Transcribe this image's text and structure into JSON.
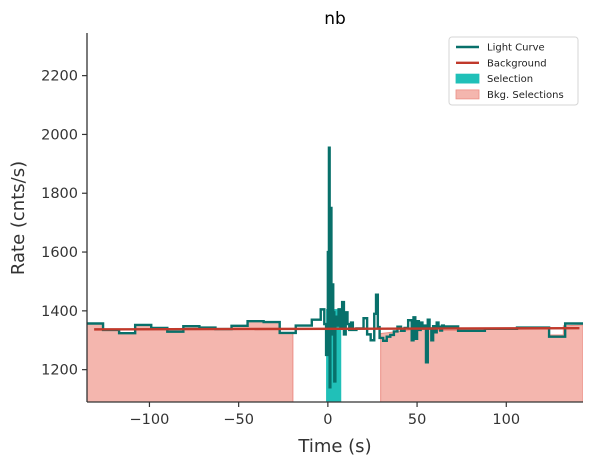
{
  "chart_data": {
    "type": "line",
    "title": "nb",
    "xlabel": "Time (s)",
    "ylabel": "Rate (cnts/s)",
    "xlim": [
      -135,
      143
    ],
    "ylim": [
      1090,
      2345
    ],
    "xticks": [
      -100,
      -50,
      0,
      50,
      100
    ],
    "xtick_labels": [
      "−100",
      "−50",
      "0",
      "50",
      "100"
    ],
    "yticks": [
      1200,
      1400,
      1600,
      1800,
      2000,
      2200
    ],
    "ytick_labels": [
      "1200",
      "1400",
      "1600",
      "1800",
      "2000",
      "2200"
    ],
    "grid": false,
    "legend_position": "top-right",
    "legend": [
      {
        "label": "Light Curve",
        "kind": "line",
        "color": "#08706a"
      },
      {
        "label": "Background",
        "kind": "line",
        "color": "#c0392b"
      },
      {
        "label": "Selection",
        "kind": "patch",
        "color": "#20c0b8"
      },
      {
        "label": "Bkg. Selections",
        "kind": "patch",
        "color": "#f4b6ae"
      }
    ],
    "colors": {
      "light_curve": "#08706a",
      "background": "#c0392b",
      "selection": "#20c0b8",
      "bkg_selection_fill": "#f4b6ae",
      "bkg_selection_edge": "#ec8f86"
    },
    "background_line": {
      "x": [
        -131,
        141
      ],
      "y": [
        1337,
        1341
      ]
    },
    "bkg_selections": [
      {
        "x": [
          -135,
          -19.6
        ],
        "y": [
          [
            -135,
            1357
          ],
          [
            -126,
            1357
          ],
          [
            -126,
            1335
          ],
          [
            -117,
            1335
          ],
          [
            -117,
            1324
          ],
          [
            -108,
            1324
          ],
          [
            -108,
            1352
          ],
          [
            -99,
            1352
          ],
          [
            -99,
            1342
          ],
          [
            -90,
            1342
          ],
          [
            -90,
            1329
          ],
          [
            -81,
            1329
          ],
          [
            -81,
            1348
          ],
          [
            -72,
            1348
          ],
          [
            -72,
            1343
          ],
          [
            -63,
            1343
          ],
          [
            -63,
            1338
          ],
          [
            -54,
            1338
          ],
          [
            -54,
            1349
          ],
          [
            -45,
            1349
          ],
          [
            -45,
            1365
          ],
          [
            -36,
            1365
          ],
          [
            -36,
            1362
          ],
          [
            -27,
            1362
          ],
          [
            -27,
            1325
          ],
          [
            -19.6,
            1325
          ]
        ]
      },
      {
        "x": [
          29.6,
          143
        ],
        "y": [
          [
            29.6,
            1323
          ],
          [
            40,
            1330
          ],
          [
            48,
            1336
          ],
          [
            55,
            1342
          ],
          [
            62,
            1333
          ],
          [
            70,
            1333
          ],
          [
            88,
            1333
          ],
          [
            88,
            1339
          ],
          [
            106,
            1339
          ],
          [
            106,
            1343
          ],
          [
            124,
            1343
          ],
          [
            124,
            1318
          ],
          [
            132,
            1318
          ],
          [
            132,
            1349
          ],
          [
            143,
            1352
          ]
        ]
      }
    ],
    "selection": {
      "x_range": [
        -1,
        7.5
      ]
    },
    "light_curve": {
      "x": [
        -135,
        -126,
        -126,
        -117,
        -117,
        -108,
        -108,
        -99,
        -99,
        -90,
        -90,
        -81,
        -81,
        -72,
        -72,
        -63,
        -63,
        -54,
        -54,
        -45,
        -45,
        -36,
        -36,
        -27,
        -27,
        -18,
        -18,
        -9,
        -9,
        -4,
        -4,
        -2,
        -2,
        -1,
        -1,
        0,
        0,
        0.3,
        0.3,
        0.6,
        0.6,
        1,
        1,
        1.4,
        1.4,
        2,
        2,
        2.5,
        2.5,
        3,
        3,
        3.6,
        3.6,
        4.2,
        4.2,
        5,
        5,
        6,
        6,
        7,
        7,
        8,
        8,
        9,
        9,
        10,
        10,
        11,
        11,
        12,
        12,
        13,
        13,
        14,
        14,
        16,
        16,
        18,
        18,
        20,
        20,
        22,
        22,
        24,
        24,
        26,
        26,
        27,
        27,
        28,
        28,
        29,
        29,
        31,
        31,
        33,
        33,
        35,
        35,
        37,
        37,
        39,
        39,
        41,
        41,
        43,
        43,
        45,
        45,
        47,
        47,
        48,
        48,
        49,
        49,
        50,
        50,
        51,
        51,
        52,
        52,
        53,
        53,
        54,
        54,
        55,
        55,
        56,
        56,
        57,
        57,
        58,
        58,
        59,
        59,
        60,
        60,
        61,
        61,
        62,
        62,
        63,
        63,
        64,
        64,
        65,
        65,
        73,
        73,
        88,
        88,
        106,
        106,
        124,
        124,
        133,
        133,
        143
      ],
      "y": [
        1357,
        1357,
        1335,
        1335,
        1324,
        1324,
        1352,
        1352,
        1342,
        1342,
        1329,
        1329,
        1348,
        1348,
        1343,
        1343,
        1338,
        1338,
        1349,
        1349,
        1365,
        1365,
        1362,
        1362,
        1325,
        1325,
        1350,
        1350,
        1370,
        1370,
        1405,
        1405,
        1355,
        1355,
        1250,
        1250,
        1600,
        1600,
        1380,
        1380,
        1955,
        1955,
        1140,
        1140,
        1750,
        1750,
        1320,
        1320,
        1490,
        1490,
        1395,
        1395,
        1160,
        1160,
        1380,
        1380,
        1350,
        1350,
        1405,
        1405,
        1345,
        1345,
        1430,
        1430,
        1320,
        1320,
        1395,
        1395,
        1355,
        1355,
        1335,
        1335,
        1360,
        1360,
        1335,
        1335,
        1340,
        1340,
        1340,
        1340,
        1375,
        1375,
        1320,
        1320,
        1300,
        1300,
        1390,
        1390,
        1455,
        1455,
        1345,
        1345,
        1308,
        1308,
        1298,
        1298,
        1312,
        1312,
        1318,
        1318,
        1330,
        1330,
        1346,
        1346,
        1332,
        1332,
        1342,
        1342,
        1368,
        1368,
        1300,
        1300,
        1378,
        1378,
        1305,
        1305,
        1365,
        1365,
        1335,
        1335,
        1360,
        1360,
        1340,
        1340,
        1350,
        1350,
        1225,
        1225,
        1370,
        1370,
        1340,
        1340,
        1300,
        1300,
        1348,
        1348,
        1327,
        1327,
        1360,
        1360,
        1346,
        1346,
        1333,
        1333,
        1350,
        1350,
        1347,
        1347,
        1332,
        1332,
        1339,
        1339,
        1343,
        1343,
        1312,
        1312,
        1357,
        1357
      ]
    }
  }
}
